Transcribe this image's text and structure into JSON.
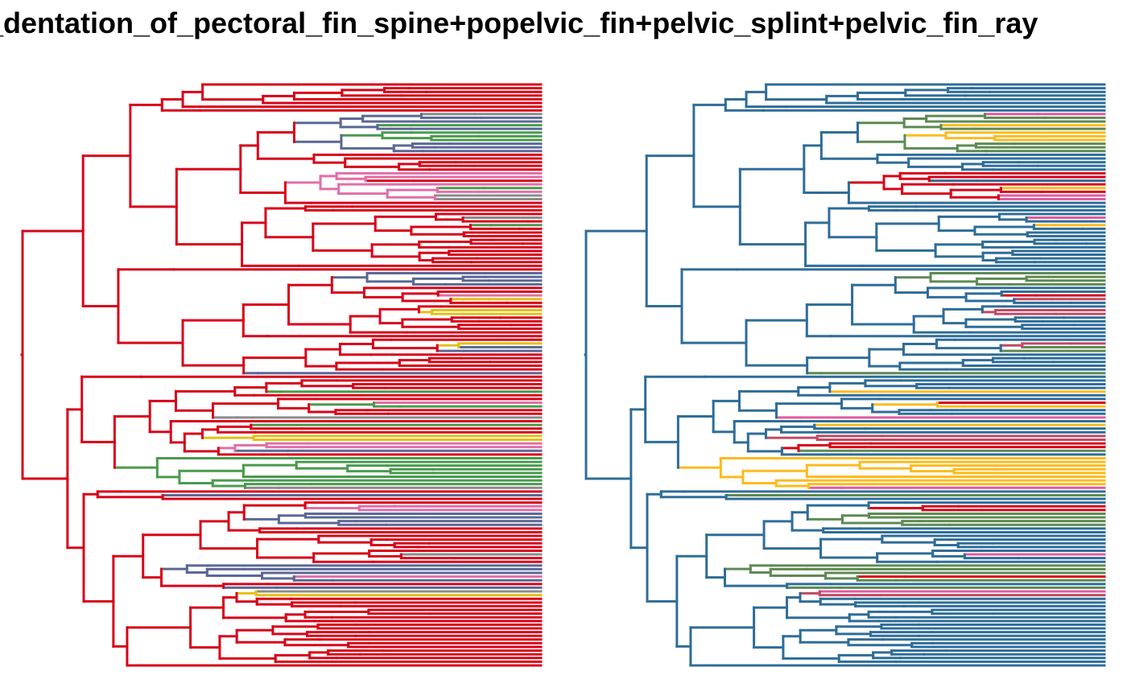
{
  "title": "or_dentation_of_pectoral_fin_spine+popelvic_fin+pelvic_splint+pelvic_fin_ray",
  "panels": [
    {
      "name": "left",
      "colors": {
        "base": "#d7051a",
        "alt1": "#4a9a4e",
        "alt2": "#5b6896",
        "alt3": "#e3c018",
        "alt4": "#8b8b8b",
        "alt5": "#e06fa8"
      }
    },
    {
      "name": "right",
      "colors": {
        "base": "#2f6d98",
        "alt1": "#fcbb1f",
        "alt2": "#5e8a53",
        "alt3": "#c04a64",
        "alt4": "#e05aa0",
        "alt5": "#d7051a"
      }
    }
  ]
}
